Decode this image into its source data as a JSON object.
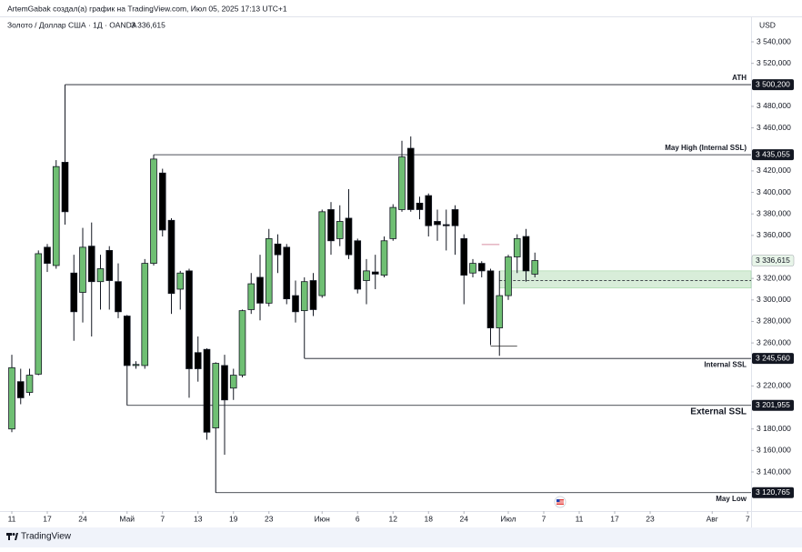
{
  "header": {
    "author_line": "ArtemGabak создал(а) график на TradingView.com, Июл 05, 2025 17:13 UTC+1"
  },
  "footer": {
    "brand": "TradingView"
  },
  "chart_data": {
    "type": "candlestick",
    "title": "Золото / Доллар США · 1Д · OANDA",
    "currency": "USD",
    "last_price": {
      "value": 3336.615,
      "label": "3 336,615"
    },
    "up_color": "#6fbf73",
    "down_color": "#000000",
    "grid": false,
    "xlim": [
      -1.333,
      83.385
    ],
    "ylim": [
      3103.64,
      3563.68
    ],
    "xticks": [
      {
        "value": 0,
        "label": "11"
      },
      {
        "value": 4,
        "label": "17"
      },
      {
        "value": 8,
        "label": "24"
      },
      {
        "value": 13,
        "label": "Май"
      },
      {
        "value": 17,
        "label": "7"
      },
      {
        "value": 21,
        "label": "13"
      },
      {
        "value": 25,
        "label": "19"
      },
      {
        "value": 29,
        "label": "23"
      },
      {
        "value": 35,
        "label": "Июн"
      },
      {
        "value": 39,
        "label": "6"
      },
      {
        "value": 43,
        "label": "12"
      },
      {
        "value": 47,
        "label": "18"
      },
      {
        "value": 51,
        "label": "24"
      },
      {
        "value": 56,
        "label": "Июл"
      },
      {
        "value": 60,
        "label": "7"
      },
      {
        "value": 64,
        "label": "11"
      },
      {
        "value": 68,
        "label": "17"
      },
      {
        "value": 72,
        "label": "23"
      },
      {
        "value": 79,
        "label": "Авг"
      },
      {
        "value": 83,
        "label": "7"
      }
    ],
    "yticks": [
      {
        "value": 3540,
        "label": "3 540,000"
      },
      {
        "value": 3520,
        "label": "3 520,000"
      },
      {
        "value": 3480,
        "label": "3 480,000"
      },
      {
        "value": 3460,
        "label": "3 460,000"
      },
      {
        "value": 3420,
        "label": "3 420,000"
      },
      {
        "value": 3400,
        "label": "3 400,000"
      },
      {
        "value": 3380,
        "label": "3 380,000"
      },
      {
        "value": 3360,
        "label": "3 360,000"
      },
      {
        "value": 3320,
        "label": "3 320,000"
      },
      {
        "value": 3300,
        "label": "3 300,000"
      },
      {
        "value": 3280,
        "label": "3 280,000"
      },
      {
        "value": 3260,
        "label": "3 260,000"
      },
      {
        "value": 3220,
        "label": "3 220,000"
      },
      {
        "value": 3180,
        "label": "3 180,000"
      },
      {
        "value": 3160,
        "label": "3 160,000"
      },
      {
        "value": 3140,
        "label": "3 140,000"
      }
    ],
    "open": [
      3180,
      3224,
      3214,
      3231,
      3349,
      3332,
      3428,
      3325,
      3307,
      3350,
      3317,
      3346,
      3317,
      3285,
      3239,
      3239,
      3334,
      3418,
      3374,
      3310,
      3327,
      3251,
      3254,
      3181,
      3239,
      3218,
      3230,
      3291,
      3321,
      3297,
      3352,
      3349,
      3304,
      3290,
      3318,
      3304,
      3384,
      3357,
      3376,
      3355,
      3318,
      3326,
      3323,
      3357,
      3384,
      3441,
      3390,
      3397,
      3373,
      3370,
      3384,
      3357,
      3325,
      3334,
      3327,
      3274,
      3304,
      3340,
      3359,
      3324
    ],
    "high": [
      3249,
      3236,
      3236,
      3346,
      3352,
      3430,
      3500.2,
      3342,
      3367,
      3372,
      3342,
      3350,
      3334,
      3286,
      3243,
      3338,
      3435.055,
      3422,
      3376,
      3327,
      3329,
      3266,
      3255,
      3242,
      3249,
      3236,
      3291,
      3325,
      3342,
      3366,
      3361,
      3352,
      3318,
      3321,
      3325,
      3384,
      3391,
      3388,
      3403,
      3357,
      3338,
      3342,
      3359,
      3389,
      3448,
      3452,
      3396,
      3399,
      3384,
      3384,
      3388,
      3361,
      3338,
      3336,
      3329,
      3327,
      3342,
      3361,
      3366,
      3344
    ],
    "low": [
      3177,
      3203,
      3211,
      3230,
      3326,
      3329,
      3370,
      3262,
      3279,
      3266,
      3291,
      3291,
      3283,
      3201.955,
      3236,
      3236,
      3332,
      3359,
      3287,
      3291,
      3209,
      3224,
      3170,
      3120.765,
      3156,
      3207,
      3228,
      3287,
      3281,
      3294,
      3325,
      3296,
      3279,
      3245.56,
      3285,
      3302,
      3342,
      3350,
      3338,
      3306,
      3296,
      3310,
      3321,
      3355,
      3382,
      3382,
      3375,
      3359,
      3355,
      3346,
      3342,
      3296,
      3321,
      3321,
      3258,
      3248,
      3300,
      3325,
      3317,
      3321
    ],
    "close": [
      3237,
      3209,
      3230,
      3343,
      3334,
      3424,
      3382,
      3289,
      3349,
      3317,
      3329,
      3318,
      3289,
      3239,
      3240,
      3334,
      3431,
      3365,
      3306,
      3325,
      3236,
      3236,
      3177,
      3241,
      3207,
      3230,
      3290,
      3315,
      3297,
      3357,
      3342,
      3301,
      3289,
      3317,
      3291,
      3382,
      3355,
      3373,
      3342,
      3310,
      3327,
      3324,
      3355,
      3386,
      3433,
      3384,
      3384,
      3369,
      3370,
      3369,
      3369,
      3323,
      3334,
      3327,
      3274,
      3304,
      3340,
      3357,
      3327,
      3336.615
    ],
    "levels": [
      {
        "name": "ATH",
        "value": 3500.2,
        "label": "3 500,200",
        "start": 6,
        "bold": false
      },
      {
        "name": "May High (Internal SSL)",
        "value": 3435.055,
        "label": "3 435,055",
        "start": 16,
        "bold": false
      },
      {
        "name": "Internal SSL",
        "value": 3245.56,
        "label": "3 245,560",
        "start": 33,
        "bold": false
      },
      {
        "name": "External SSL",
        "value": 3201.955,
        "label": "3 201,955",
        "start": 13,
        "bold": true
      },
      {
        "name": "May Low",
        "value": 3120.765,
        "label": "3 120,765",
        "start": 23,
        "bold": false
      }
    ],
    "zone": {
      "top": 3327,
      "bottom": 3311,
      "mid": 3318,
      "start": 55,
      "color": "#c8e6c9"
    },
    "segments": [
      {
        "value": 3351.5,
        "from": 53,
        "to": 55,
        "color": "#d88ea0"
      },
      {
        "value": 3257,
        "from": 54,
        "to": 57,
        "color": "#555555"
      }
    ]
  }
}
